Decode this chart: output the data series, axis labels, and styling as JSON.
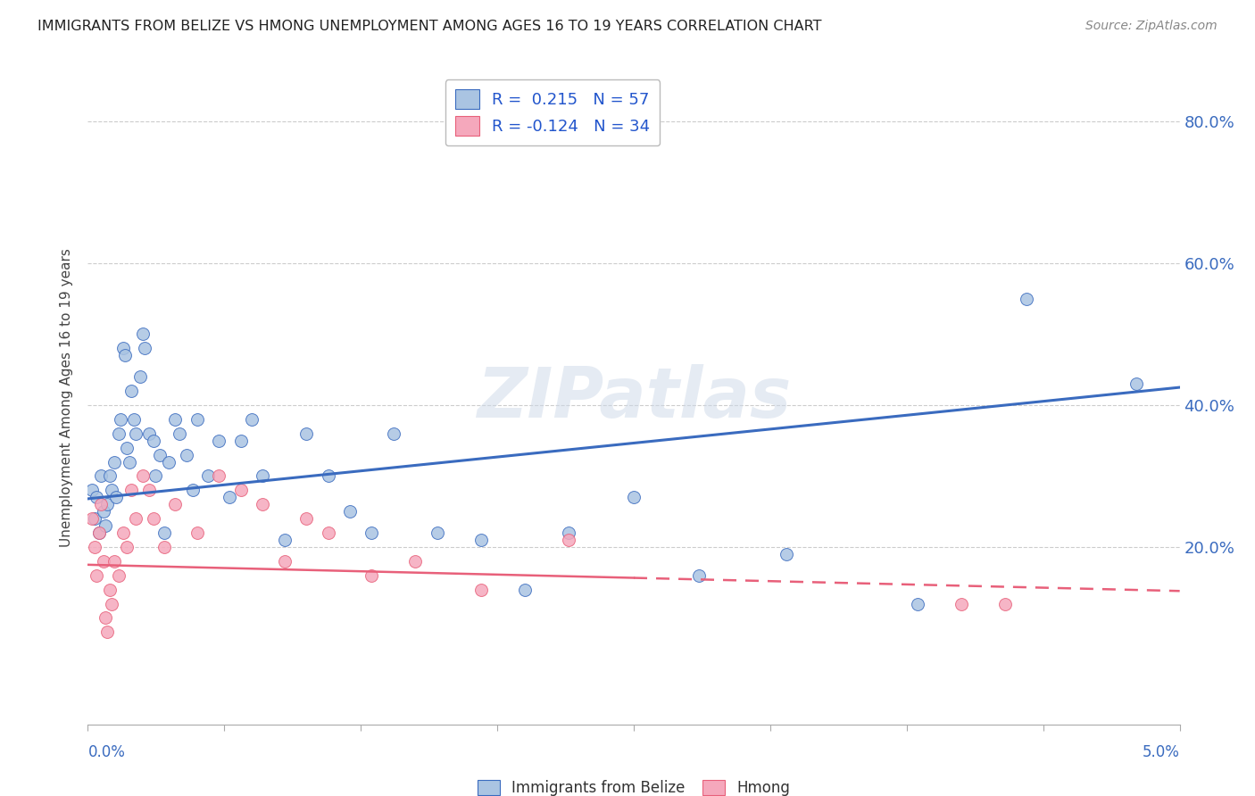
{
  "title": "IMMIGRANTS FROM BELIZE VS HMONG UNEMPLOYMENT AMONG AGES 16 TO 19 YEARS CORRELATION CHART",
  "source": "Source: ZipAtlas.com",
  "ylabel": "Unemployment Among Ages 16 to 19 years",
  "right_yticks": [
    "80.0%",
    "60.0%",
    "40.0%",
    "20.0%"
  ],
  "right_ytick_vals": [
    0.8,
    0.6,
    0.4,
    0.2
  ],
  "xlim": [
    0.0,
    0.05
  ],
  "ylim": [
    -0.05,
    0.87
  ],
  "belize_color": "#aac4e2",
  "hmong_color": "#f5a8bc",
  "belize_line_color": "#3a6bbf",
  "hmong_line_color": "#e8607a",
  "belize_scatter_x": [
    0.0002,
    0.0003,
    0.0004,
    0.0005,
    0.0006,
    0.0007,
    0.0008,
    0.0009,
    0.001,
    0.0011,
    0.0012,
    0.0013,
    0.0014,
    0.0015,
    0.0016,
    0.0017,
    0.0018,
    0.0019,
    0.002,
    0.0021,
    0.0022,
    0.0024,
    0.0025,
    0.0026,
    0.0028,
    0.003,
    0.0031,
    0.0033,
    0.0035,
    0.0037,
    0.004,
    0.0042,
    0.0045,
    0.0048,
    0.005,
    0.0055,
    0.006,
    0.0065,
    0.007,
    0.0075,
    0.008,
    0.009,
    0.01,
    0.011,
    0.012,
    0.013,
    0.014,
    0.016,
    0.018,
    0.02,
    0.022,
    0.025,
    0.028,
    0.032,
    0.038,
    0.043,
    0.048
  ],
  "belize_scatter_y": [
    0.28,
    0.24,
    0.27,
    0.22,
    0.3,
    0.25,
    0.23,
    0.26,
    0.3,
    0.28,
    0.32,
    0.27,
    0.36,
    0.38,
    0.48,
    0.47,
    0.34,
    0.32,
    0.42,
    0.38,
    0.36,
    0.44,
    0.5,
    0.48,
    0.36,
    0.35,
    0.3,
    0.33,
    0.22,
    0.32,
    0.38,
    0.36,
    0.33,
    0.28,
    0.38,
    0.3,
    0.35,
    0.27,
    0.35,
    0.38,
    0.3,
    0.21,
    0.36,
    0.3,
    0.25,
    0.22,
    0.36,
    0.22,
    0.21,
    0.14,
    0.22,
    0.27,
    0.16,
    0.19,
    0.12,
    0.55,
    0.43
  ],
  "hmong_scatter_x": [
    0.0002,
    0.0003,
    0.0004,
    0.0005,
    0.0006,
    0.0007,
    0.0008,
    0.0009,
    0.001,
    0.0011,
    0.0012,
    0.0014,
    0.0016,
    0.0018,
    0.002,
    0.0022,
    0.0025,
    0.0028,
    0.003,
    0.0035,
    0.004,
    0.005,
    0.006,
    0.007,
    0.008,
    0.009,
    0.01,
    0.011,
    0.013,
    0.015,
    0.018,
    0.022,
    0.04,
    0.042
  ],
  "hmong_scatter_y": [
    0.24,
    0.2,
    0.16,
    0.22,
    0.26,
    0.18,
    0.1,
    0.08,
    0.14,
    0.12,
    0.18,
    0.16,
    0.22,
    0.2,
    0.28,
    0.24,
    0.3,
    0.28,
    0.24,
    0.2,
    0.26,
    0.22,
    0.3,
    0.28,
    0.26,
    0.18,
    0.24,
    0.22,
    0.16,
    0.18,
    0.14,
    0.21,
    0.12,
    0.12
  ],
  "belize_trend": [
    0.0,
    0.268,
    0.05,
    0.425
  ],
  "hmong_trend": [
    0.0,
    0.175,
    0.05,
    0.138
  ],
  "background_color": "#ffffff",
  "grid_color": "#cccccc",
  "marker_size": 100
}
